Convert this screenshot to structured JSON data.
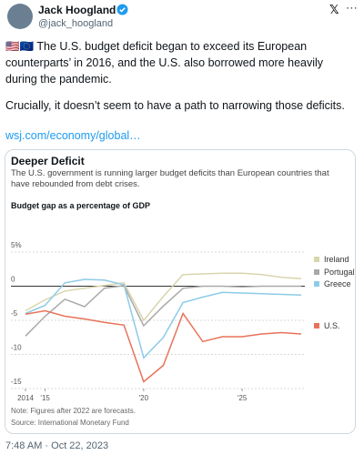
{
  "tweet": {
    "name": "Jack Hoogland",
    "handle": "@jack_hoogland",
    "paragraphs": [
      "🇺🇸🇪🇺 The U.S. budget deficit began to exceed its European counterparts’ in 2016, and the U.S. also borrowed more heavily during the pandemic.",
      "Crucially, it doesn’t seem to have a path to narrowing those deficits."
    ],
    "link": "wsj.com/economy/global…",
    "timestamp": "7:48 AM · Oct 22, 2023"
  },
  "chart_data": {
    "type": "line",
    "title": "Deeper Deficit",
    "subtitle": "The U.S. government is running larger budget deficits than European countries that have rebounded from debt crises.",
    "y_label": "Budget gap as a percentage of GDP",
    "x": [
      2014,
      2015,
      2016,
      2017,
      2018,
      2019,
      2020,
      2021,
      2022,
      2023,
      2024,
      2025,
      2026,
      2027,
      2028
    ],
    "series": [
      {
        "name": "Ireland",
        "color": "#d9d5ad",
        "values": [
          -3.6,
          -2.0,
          -0.7,
          -0.3,
          0.1,
          0.5,
          -5.0,
          -1.5,
          1.7,
          1.8,
          1.9,
          1.9,
          1.7,
          1.3,
          1.1
        ]
      },
      {
        "name": "Portugal",
        "color": "#a9a9a9",
        "values": [
          -7.3,
          -4.4,
          -1.9,
          -3.0,
          -0.3,
          0.1,
          -5.8,
          -2.9,
          -0.3,
          0.0,
          0.0,
          -0.1,
          0.0,
          0.0,
          0.0
        ]
      },
      {
        "name": "Greece",
        "color": "#8dcbe8",
        "values": [
          -4.0,
          -2.8,
          0.5,
          1.0,
          0.9,
          0.2,
          -10.5,
          -7.5,
          -2.4,
          -1.6,
          -0.9,
          -1.0,
          -1.1,
          -1.2,
          -1.3
        ]
      },
      {
        "name": "U.S.",
        "color": "#e8735a",
        "values": [
          -4.1,
          -3.6,
          -4.4,
          -4.8,
          -5.3,
          -5.7,
          -14.0,
          -11.6,
          -4.0,
          -8.1,
          -7.4,
          -7.4,
          -7.0,
          -6.8,
          -7.0
        ]
      }
    ],
    "xlim": [
      2014,
      2028
    ],
    "xticks": [
      2014,
      {
        "value": 2015,
        "label": "'15"
      },
      {
        "value": 2020,
        "label": "'20"
      },
      {
        "value": 2025,
        "label": "'25"
      }
    ],
    "ylim": [
      -15,
      5
    ],
    "yticks": [
      {
        "value": 5,
        "label": "5%"
      },
      0,
      -5,
      -10,
      -15
    ],
    "grid": true,
    "note": "Note: Figures after 2022 are forecasts.",
    "source": "Source: International Monetary Fund"
  }
}
